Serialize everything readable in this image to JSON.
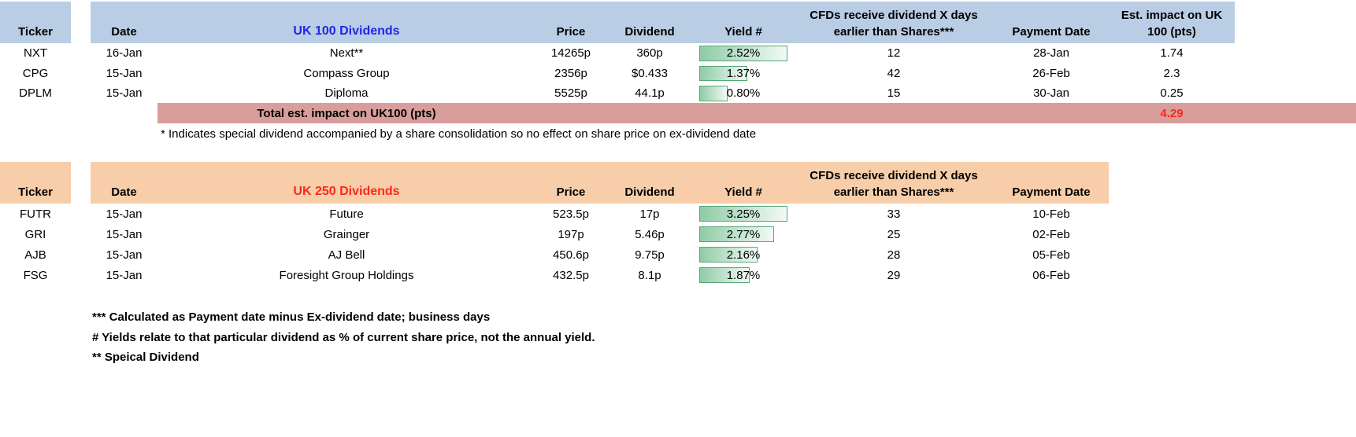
{
  "uk100": {
    "header": {
      "ticker": "Ticker",
      "date": "Date",
      "name": "UK 100 Dividends",
      "price": "Price",
      "dividend": "Dividend",
      "yield": "Yield #",
      "cfds_line1": "CFDs receive dividend X days",
      "cfds_line2": "earlier than Shares***",
      "payment": "Payment Date",
      "impact_line1": "Est. impact on UK",
      "impact_line2": "100 (pts)"
    },
    "yield_bar_max": 2.52,
    "rows": [
      {
        "ticker": "NXT",
        "date": "16-Jan",
        "name": "Next**",
        "price": "14265p",
        "dividend": "360p",
        "yield": "2.52%",
        "yield_value": 2.52,
        "cfds": "12",
        "payment": "28-Jan",
        "impact": "1.74"
      },
      {
        "ticker": "CPG",
        "date": "15-Jan",
        "name": "Compass Group",
        "price": "2356p",
        "dividend": "$0.433",
        "yield": "1.37%",
        "yield_value": 1.37,
        "cfds": "42",
        "payment": "26-Feb",
        "impact": "2.3"
      },
      {
        "ticker": "DPLM",
        "date": "15-Jan",
        "name": "Diploma",
        "price": "5525p",
        "dividend": "44.1p",
        "yield": "0.80%",
        "yield_value": 0.8,
        "cfds": "15",
        "payment": "30-Jan",
        "impact": "0.25"
      }
    ],
    "total": {
      "label": "Total est. impact on UK100 (pts)",
      "value": "4.29"
    },
    "note": "* Indicates special dividend accompanied by a share consolidation so no effect on share price on ex-dividend date"
  },
  "uk250": {
    "header": {
      "ticker": "Ticker",
      "date": "Date",
      "name": "UK 250 Dividends",
      "price": "Price",
      "dividend": "Dividend",
      "yield": "Yield #",
      "cfds_line1": "CFDs receive dividend X days",
      "cfds_line2": "earlier than Shares***",
      "payment": "Payment Date"
    },
    "yield_bar_max": 3.25,
    "rows": [
      {
        "ticker": "FUTR",
        "date": "15-Jan",
        "name": "Future",
        "price": "523.5p",
        "dividend": "17p",
        "yield": "3.25%",
        "yield_value": 3.25,
        "cfds": "33",
        "payment": "10-Feb"
      },
      {
        "ticker": "GRI",
        "date": "15-Jan",
        "name": "Grainger",
        "price": "197p",
        "dividend": "5.46p",
        "yield": "2.77%",
        "yield_value": 2.77,
        "cfds": "25",
        "payment": "02-Feb"
      },
      {
        "ticker": "AJB",
        "date": "15-Jan",
        "name": "AJ Bell",
        "price": "450.6p",
        "dividend": "9.75p",
        "yield": "2.16%",
        "yield_value": 2.16,
        "cfds": "28",
        "payment": "05-Feb"
      },
      {
        "ticker": "FSG",
        "date": "15-Jan",
        "name": "Foresight Group Holdings",
        "price": "432.5p",
        "dividend": "8.1p",
        "yield": "1.87%",
        "yield_value": 1.87,
        "cfds": "29",
        "payment": "06-Feb"
      }
    ]
  },
  "footnotes": [
    "*** Calculated as Payment date minus Ex-dividend date; business days",
    "# Yields relate to that particular dividend as % of current share price, not the annual yield.",
    "** Speical Dividend"
  ],
  "colors": {
    "uk100_header_bg": "#B9CDE4",
    "uk250_header_bg": "#F7CEA9",
    "total_row_bg": "#D99E9C",
    "uk100_title": "#2126E8",
    "uk250_title": "#F82A1B",
    "total_value": "#F82A1B",
    "yield_bar_fill": "#8FCCA5",
    "yield_bar_border": "#57A877"
  }
}
